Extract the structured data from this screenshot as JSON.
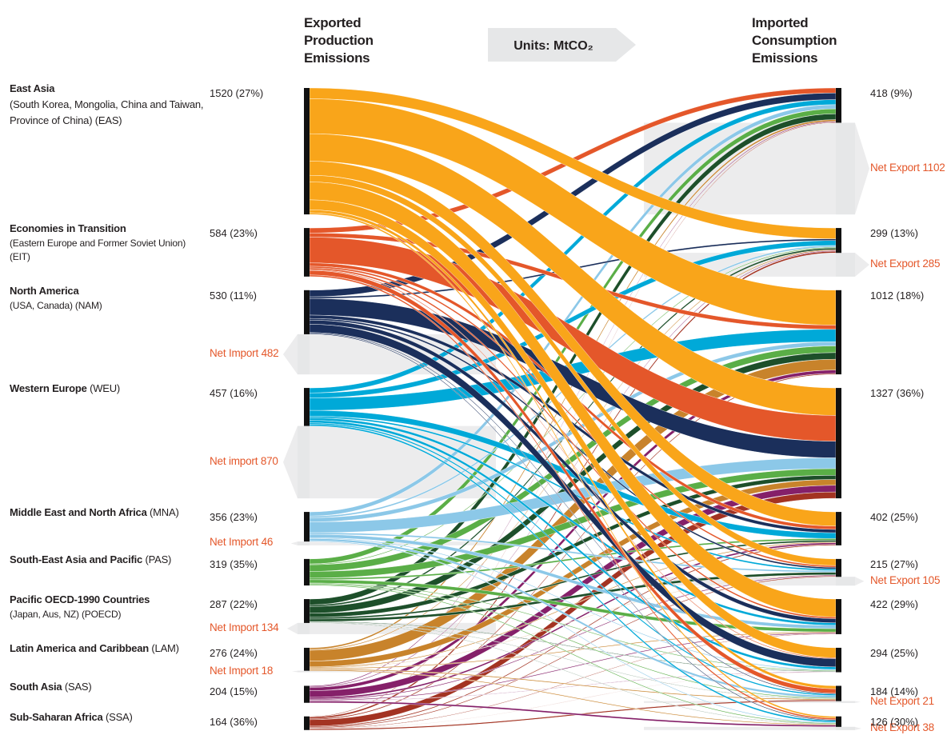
{
  "header": {
    "exported": "Exported Production Emissions",
    "imported": "Imported Consumption Emissions",
    "units": "Units: MtCO₂"
  },
  "nodes": [
    {
      "name": "East Asia",
      "detail": "(South Korea, Mongolia, China and Taiwan, Province of China) (EAS)",
      "color": "#f9a51a",
      "export": 1520,
      "export_label": "1520 (27%)",
      "import": 418,
      "import_label": "418 (9%)",
      "net": {
        "label": "Net Export 1102",
        "value": 1102
      }
    },
    {
      "name": "Economies in Transition",
      "detail": "(Eastern Europe and Former Soviet Union) (EIT)",
      "color": "#e4572a",
      "export": 584,
      "export_label": "584 (23%)",
      "import": 299,
      "import_label": "299 (13%)",
      "net": {
        "label": "Net Export 285",
        "value": 285
      }
    },
    {
      "name": "North America",
      "detail": "(USA, Canada) (NAM)",
      "color": "#1b2f5b",
      "export": 530,
      "export_label": "530 (11%)",
      "import": 1012,
      "import_label": "1012 (18%)",
      "net": {
        "label": "Net Import 482",
        "value": 482
      }
    },
    {
      "name": "Western Europe",
      "detail": "(WEU)",
      "color": "#00a9d8",
      "export": 457,
      "export_label": "457 (16%)",
      "import": 1327,
      "import_label": "1327 (36%)",
      "net": {
        "label": "Net import 870",
        "value": 870
      }
    },
    {
      "name": "Middle East and North Africa",
      "detail": "(MNA)",
      "color": "#8cc8e8",
      "export": 356,
      "export_label": "356 (23%)",
      "import": 402,
      "import_label": "402 (25%)",
      "net": {
        "label": "Net Import 46",
        "value": 46
      }
    },
    {
      "name": "South-East Asia and Pacific",
      "detail": "(PAS)",
      "color": "#5aae47",
      "export": 319,
      "export_label": "319 (35%)",
      "import": 215,
      "import_label": "215 (27%)",
      "net": {
        "label": "Net Export 105",
        "value": 105
      }
    },
    {
      "name": "Pacific OECD-1990 Countries",
      "detail": "(Japan, Aus, NZ) (POECD)",
      "color": "#1d4f2a",
      "export": 287,
      "export_label": "287 (22%)",
      "import": 422,
      "import_label": "422 (29%)",
      "net": {
        "label": "Net Import 134",
        "value": 134
      }
    },
    {
      "name": "Latin America and Caribbean",
      "detail": "(LAM)",
      "color": "#c8832b",
      "export": 276,
      "export_label": "276 (24%)",
      "import": 294,
      "import_label": "294 (25%)",
      "net": {
        "label": "Net Import 18",
        "value": 18
      }
    },
    {
      "name": "South Asia",
      "detail": "(SAS)",
      "color": "#852069",
      "export": 204,
      "export_label": "204 (15%)",
      "import": 184,
      "import_label": "184 (14%)",
      "net": {
        "label": "Net Export 21",
        "value": 21
      }
    },
    {
      "name": "Sub-Saharan Africa",
      "detail": "(SSA)",
      "color": "#a33322",
      "export": 164,
      "export_label": "164 (36%)",
      "import": 126,
      "import_label": "126 (30%)",
      "net": {
        "label": "Net Export 38",
        "value": 38
      }
    }
  ],
  "flows": [
    [
      0,
      1,
      130
    ],
    [
      0,
      2,
      420
    ],
    [
      0,
      3,
      330
    ],
    [
      0,
      4,
      170
    ],
    [
      0,
      5,
      80
    ],
    [
      0,
      6,
      215
    ],
    [
      0,
      7,
      120
    ],
    [
      0,
      8,
      35
    ],
    [
      0,
      9,
      20
    ],
    [
      1,
      0,
      60
    ],
    [
      1,
      2,
      50
    ],
    [
      1,
      3,
      310
    ],
    [
      1,
      4,
      40
    ],
    [
      1,
      5,
      20
    ],
    [
      1,
      6,
      20
    ],
    [
      1,
      7,
      10
    ],
    [
      1,
      8,
      55
    ],
    [
      1,
      9,
      19
    ],
    [
      2,
      0,
      80
    ],
    [
      2,
      1,
      20
    ],
    [
      2,
      3,
      200
    ],
    [
      2,
      4,
      40
    ],
    [
      2,
      5,
      20
    ],
    [
      2,
      6,
      50
    ],
    [
      2,
      7,
      100
    ],
    [
      2,
      8,
      10
    ],
    [
      2,
      9,
      10
    ],
    [
      3,
      0,
      60
    ],
    [
      3,
      1,
      60
    ],
    [
      3,
      2,
      150
    ],
    [
      3,
      4,
      70
    ],
    [
      3,
      5,
      20
    ],
    [
      3,
      6,
      30
    ],
    [
      3,
      7,
      30
    ],
    [
      3,
      8,
      17
    ],
    [
      3,
      9,
      20
    ],
    [
      4,
      0,
      50
    ],
    [
      4,
      1,
      20
    ],
    [
      4,
      2,
      50
    ],
    [
      4,
      3,
      130
    ],
    [
      4,
      5,
      20
    ],
    [
      4,
      6,
      40
    ],
    [
      4,
      7,
      10
    ],
    [
      4,
      8,
      26
    ],
    [
      4,
      9,
      10
    ],
    [
      5,
      0,
      60
    ],
    [
      5,
      1,
      10
    ],
    [
      5,
      2,
      80
    ],
    [
      5,
      3,
      80
    ],
    [
      5,
      4,
      20
    ],
    [
      5,
      6,
      40
    ],
    [
      5,
      7,
      9
    ],
    [
      5,
      8,
      10
    ],
    [
      5,
      9,
      10
    ],
    [
      6,
      0,
      70
    ],
    [
      6,
      1,
      20
    ],
    [
      6,
      2,
      80
    ],
    [
      6,
      3,
      50
    ],
    [
      6,
      4,
      20
    ],
    [
      6,
      5,
      30
    ],
    [
      6,
      7,
      7
    ],
    [
      6,
      8,
      5
    ],
    [
      6,
      9,
      5
    ],
    [
      7,
      0,
      20
    ],
    [
      7,
      1,
      10
    ],
    [
      7,
      2,
      130
    ],
    [
      7,
      3,
      70
    ],
    [
      7,
      4,
      10
    ],
    [
      7,
      5,
      5
    ],
    [
      7,
      6,
      10
    ],
    [
      7,
      8,
      11
    ],
    [
      7,
      9,
      10
    ],
    [
      8,
      0,
      10
    ],
    [
      8,
      1,
      9
    ],
    [
      8,
      2,
      40
    ],
    [
      8,
      3,
      80
    ],
    [
      8,
      4,
      20
    ],
    [
      8,
      5,
      10
    ],
    [
      8,
      6,
      10
    ],
    [
      8,
      7,
      5
    ],
    [
      8,
      9,
      20
    ],
    [
      9,
      0,
      8
    ],
    [
      9,
      1,
      20
    ],
    [
      9,
      2,
      12
    ],
    [
      9,
      3,
      77
    ],
    [
      9,
      4,
      12
    ],
    [
      9,
      5,
      10
    ],
    [
      9,
      6,
      7
    ],
    [
      9,
      7,
      3
    ],
    [
      9,
      8,
      15
    ]
  ]
}
